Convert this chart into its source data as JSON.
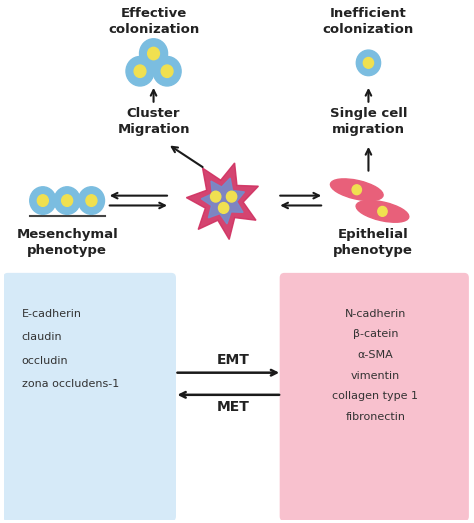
{
  "bg_color": "#ffffff",
  "title_fontsize": 9.5,
  "small_fontsize": 8,
  "blue_cell_color": "#7bbde0",
  "blue_cell_inner": "#f0e050",
  "pink_cell_color": "#e8607a",
  "pink_cell_inner": "#f0e050",
  "arrow_color": "#1a1a1a",
  "emt_box_left_color": "#c0dff5",
  "emt_box_right_color": "#f5a0b5",
  "left_labels": [
    "E-cadherin",
    "claudin",
    "occludin",
    "zona occludens-1"
  ],
  "right_labels": [
    "N-cadherin",
    "β-catein",
    "α-SMA",
    "vimentin",
    "collagen type 1",
    "fibronectin"
  ],
  "text_effective": "Effective\ncolonization",
  "text_inefficient": "Inefficient\ncolonization",
  "text_cluster": "Cluster\nMigration",
  "text_single": "Single cell\nmigration",
  "text_mesenchymal": "Mesenchymal\nphenotype",
  "text_epithelial": "Epithelial\nphenotype",
  "text_emt": "EMT",
  "text_met": "MET"
}
